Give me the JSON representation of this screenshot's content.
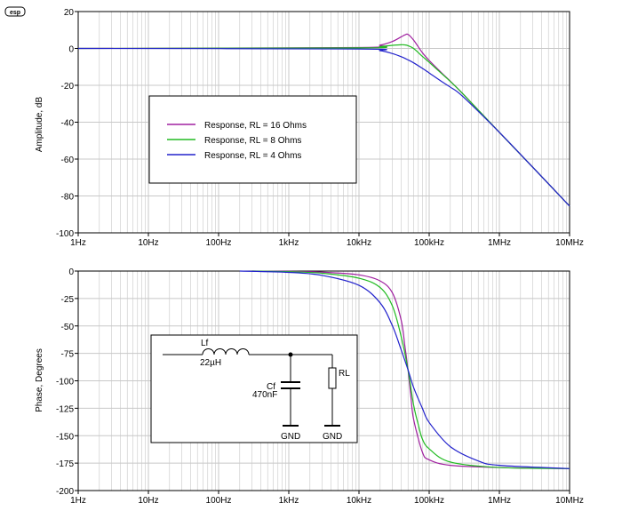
{
  "logo_text": "esp",
  "colors": {
    "rl16": "#a020a0",
    "rl8": "#22bb22",
    "rl4": "#2222cc",
    "grid": "#c8c8c8",
    "axis": "#000000"
  },
  "chart_data": [
    {
      "type": "line",
      "xscale": "log",
      "xlim": [
        1,
        10000000
      ],
      "ylim": [
        -100,
        20
      ],
      "ylabel": "Amplitude, dB",
      "xticks": [
        {
          "v": 1,
          "label": "1Hz"
        },
        {
          "v": 10,
          "label": "10Hz"
        },
        {
          "v": 100,
          "label": "100Hz"
        },
        {
          "v": 1000,
          "label": "1kHz"
        },
        {
          "v": 10000,
          "label": "10kHz"
        },
        {
          "v": 100000,
          "label": "100kHz"
        },
        {
          "v": 1000000,
          "label": "1MHz"
        },
        {
          "v": 10000000,
          "label": "10MHz"
        }
      ],
      "yticks": [
        20,
        0,
        -20,
        -40,
        -60,
        -80,
        -100
      ],
      "grid": true,
      "legend_placement": "center-left",
      "series": [
        {
          "name": "Response, RL = 16 Ohms",
          "color_key": "rl16",
          "x": [
            1,
            10000,
            20000,
            30000,
            40000,
            45000,
            50000,
            60000,
            80000,
            100000,
            150000,
            200000,
            300000,
            1000000,
            3000000,
            10000000
          ],
          "y": [
            0,
            0.5,
            1.8,
            3.8,
            6.3,
            7.3,
            7.6,
            4.5,
            -2.3,
            -6.5,
            -13.2,
            -17.8,
            -24.5,
            -45.5,
            -64.5,
            -85.5
          ]
        },
        {
          "name": "Response, RL = 8 Ohms",
          "color_key": "rl8",
          "x": [
            1,
            10000,
            20000,
            30000,
            40000,
            45000,
            50000,
            60000,
            80000,
            100000,
            150000,
            200000,
            300000,
            1000000,
            3000000,
            10000000
          ],
          "y": [
            0,
            0.3,
            1.0,
            1.7,
            2.0,
            1.9,
            1.5,
            0.0,
            -4.3,
            -7.5,
            -13.6,
            -17.9,
            -24.5,
            -45.5,
            -64.5,
            -85.5
          ]
        },
        {
          "name": "Response, RL = 4 Ohms",
          "color_key": "rl4",
          "x": [
            1,
            10000,
            20000,
            30000,
            40000,
            50000,
            60000,
            80000,
            100000,
            150000,
            200000,
            300000,
            1000000,
            3000000,
            10000000
          ],
          "y": [
            0,
            -0.3,
            -1.2,
            -2.8,
            -4.5,
            -6.2,
            -7.8,
            -10.8,
            -13.3,
            -17.9,
            -21.0,
            -26.0,
            -45.5,
            -64.5,
            -85.5
          ]
        }
      ]
    },
    {
      "type": "line",
      "xscale": "log",
      "xlim": [
        1,
        10000000
      ],
      "ylim": [
        -200,
        0
      ],
      "ylabel": "Phase, Degrees",
      "xticks": [
        {
          "v": 1,
          "label": "1Hz"
        },
        {
          "v": 10,
          "label": "10Hz"
        },
        {
          "v": 100,
          "label": "100Hz"
        },
        {
          "v": 1000,
          "label": "1kHz"
        },
        {
          "v": 10000,
          "label": "10kHz"
        },
        {
          "v": 100000,
          "label": "100kHz"
        },
        {
          "v": 1000000,
          "label": "1MHz"
        },
        {
          "v": 10000000,
          "label": "10MHz"
        }
      ],
      "yticks": [
        0,
        -25,
        -50,
        -75,
        -100,
        -125,
        -150,
        -175,
        -200
      ],
      "grid": true,
      "series": [
        {
          "name": "",
          "color_key": "rl16",
          "x": [
            300,
            1000,
            3000,
            10000,
            20000,
            30000,
            40000,
            45000,
            50000,
            55000,
            60000,
            80000,
            100000,
            200000,
            1000000,
            10000000
          ],
          "y": [
            0,
            -0.3,
            -1,
            -3.5,
            -9,
            -20,
            -45,
            -68,
            -90,
            -115,
            -135,
            -165,
            -172,
            -177,
            -179,
            -180
          ]
        },
        {
          "name": "",
          "color_key": "rl8",
          "x": [
            300,
            1000,
            3000,
            10000,
            20000,
            30000,
            40000,
            50000,
            60000,
            70000,
            80000,
            100000,
            200000,
            1000000,
            10000000
          ],
          "y": [
            0,
            -0.6,
            -2,
            -6.5,
            -15,
            -32,
            -60,
            -90,
            -122,
            -140,
            -153,
            -162,
            -174,
            -179,
            -180
          ]
        },
        {
          "name": "",
          "color_key": "rl4",
          "x": [
            200,
            1000,
            3000,
            10000,
            20000,
            30000,
            40000,
            50000,
            60000,
            80000,
            100000,
            200000,
            500000,
            1000000,
            10000000
          ],
          "y": [
            0,
            -1.2,
            -4,
            -13,
            -29,
            -50,
            -72,
            -90,
            -106,
            -125,
            -138,
            -160,
            -173,
            -177,
            -180
          ]
        }
      ]
    }
  ],
  "schematic": {
    "inductor_ref": "Lf",
    "inductor_value": "22µH",
    "capacitor_ref": "Cf",
    "capacitor_value": "470nF",
    "resistor_ref": "RL",
    "gnd1": "GND",
    "gnd2": "GND"
  }
}
